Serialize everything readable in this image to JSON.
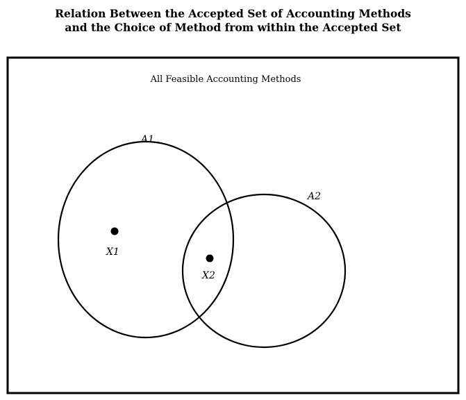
{
  "figure": {
    "title_line1": "Relation Between the Accepted Set of Accounting Methods",
    "title_line2": "and the Choice of Method from within the Accepted Set"
  },
  "diagram": {
    "universe_label": "All Feasible Accounting Methods",
    "sets": [
      {
        "name": "A1",
        "label": "A1"
      },
      {
        "name": "A2",
        "label": "A2"
      }
    ],
    "points": [
      {
        "name": "X1",
        "label": "X1",
        "inside": [
          "A1"
        ]
      },
      {
        "name": "X2",
        "label": "X2",
        "inside": [
          "A1",
          "A2"
        ]
      }
    ],
    "colors": {
      "line": "#000000",
      "background": "#ffffff"
    }
  }
}
